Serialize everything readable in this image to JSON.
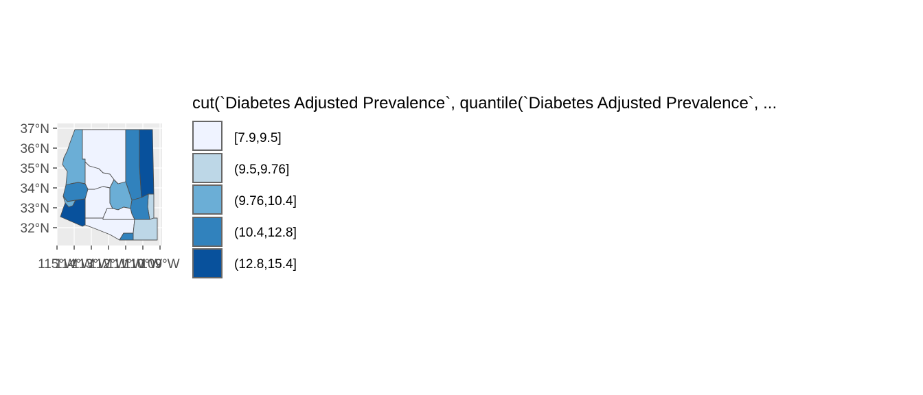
{
  "legend": {
    "title": "cut(`Diabetes Adjusted Prevalence`, quantile(`Diabetes Adjusted Prevalence`, ...",
    "items": [
      {
        "label": "[7.9,9.5]",
        "color": "#eff3ff"
      },
      {
        "label": "(9.5,9.76]",
        "color": "#bdd7e7"
      },
      {
        "label": "(9.76,10.4]",
        "color": "#6baed6"
      },
      {
        "label": "(10.4,12.8]",
        "color": "#3182bd"
      },
      {
        "label": "(12.8,15.4]",
        "color": "#08519c"
      }
    ]
  },
  "axes": {
    "y_ticks": [
      "37°N",
      "36°N",
      "35°N",
      "34°N",
      "33°N",
      "32°N"
    ],
    "x_ticks": [
      "115°W",
      "114°W",
      "113°W",
      "112°W",
      "111°W",
      "110°W",
      "109°W"
    ]
  },
  "colors": {
    "panel_background": "#ebebeb",
    "gridline": "#ffffff",
    "border": "#4d4d4d",
    "legend_key_border": "#666666"
  }
}
